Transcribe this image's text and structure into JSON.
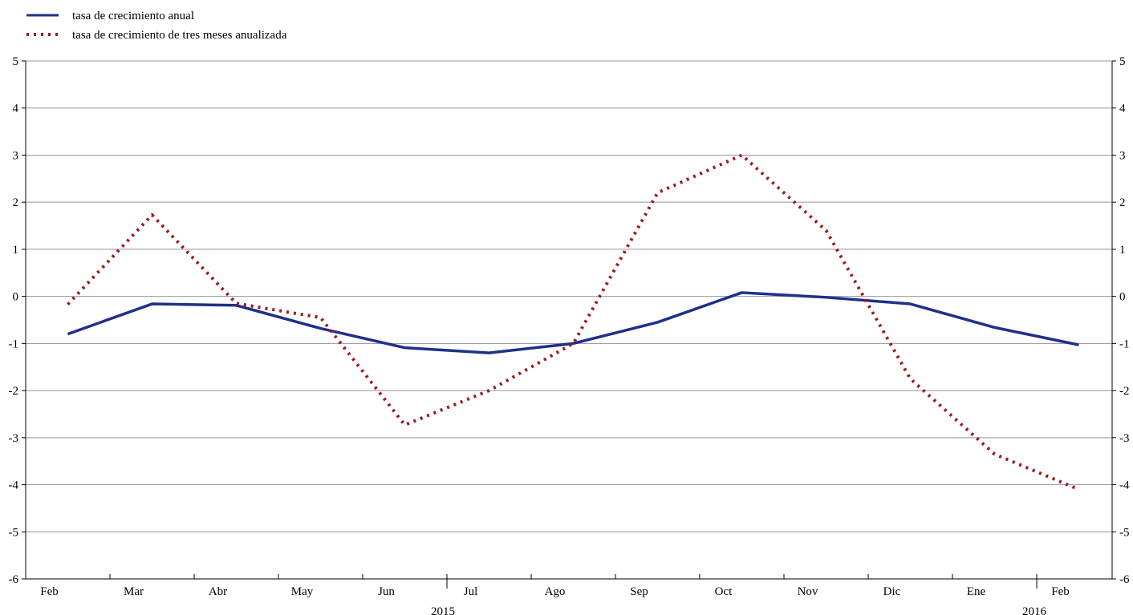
{
  "chart_data": {
    "type": "line",
    "title": "",
    "xlabel": "",
    "ylabel": "",
    "ylim": [
      -6,
      5
    ],
    "yticks": [
      5,
      4,
      3,
      2,
      1,
      0,
      -1,
      -2,
      -3,
      -4,
      -5,
      -6
    ],
    "categories": [
      "Feb",
      "Mar",
      "Abr",
      "May",
      "Jun",
      "Jul",
      "Ago",
      "Sep",
      "Oct",
      "Nov",
      "Dic",
      "Ene",
      "Feb"
    ],
    "year_labels": [
      {
        "label": "2015",
        "at": 5
      },
      {
        "label": "2016",
        "at": 12
      }
    ],
    "grid": true,
    "legend_position": "top-left",
    "series": [
      {
        "name": "tasa de crecimiento anual",
        "style": "solid",
        "color": "#1f2f8a",
        "values": [
          -0.8,
          -0.16,
          -0.19,
          -0.68,
          -1.09,
          -1.2,
          -1.0,
          -0.55,
          0.08,
          -0.02,
          -0.16,
          -0.66,
          -1.03
        ]
      },
      {
        "name": "tasa de crecimiento de tres meses anualizada",
        "style": "dotted",
        "color": "#9b1b1b",
        "values": [
          -0.17,
          1.73,
          -0.15,
          -0.45,
          -2.73,
          -2.0,
          -1.0,
          2.2,
          3.0,
          1.4,
          -1.75,
          -3.35,
          -4.1
        ]
      }
    ]
  }
}
